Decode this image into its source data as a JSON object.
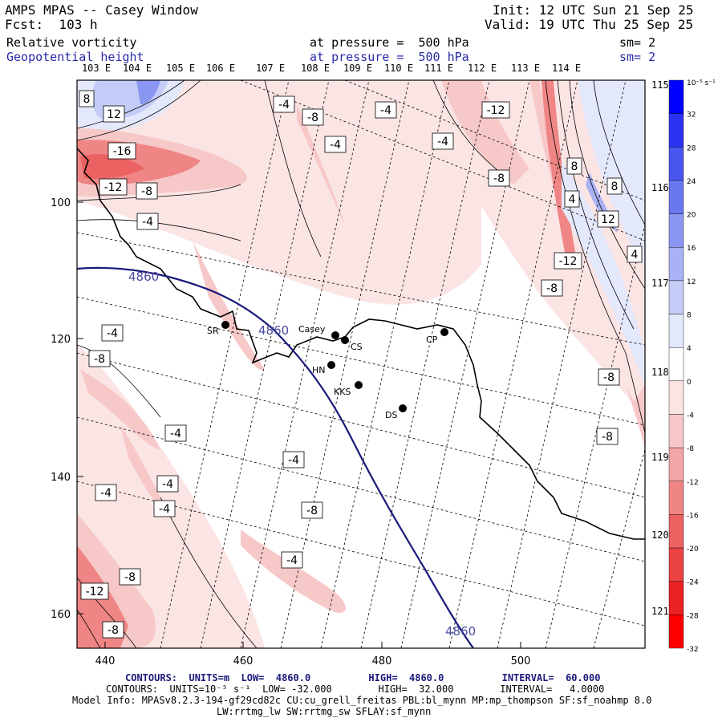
{
  "header": {
    "title": "AMPS MPAS -- Casey Window",
    "forecast": "Fcst:  103 h",
    "init": "Init: 12 UTC Sun 21 Sep 25",
    "valid": "Valid: 19 UTC Thu 25 Sep 25",
    "field1": {
      "name": "Relative vorticity",
      "level": "at pressure =  500 hPa",
      "sm": "sm= 2"
    },
    "field2": {
      "name": "Geopotential height",
      "level": "at pressure =  500 hPa",
      "sm": "sm= 2"
    }
  },
  "map": {
    "top_lon_labels": [
      "103 E",
      "104 E",
      "105 E",
      "106 E",
      "107 E",
      "108 E",
      "109 E",
      "110 E",
      "111 E",
      "112 E",
      "113 E",
      "114 E"
    ],
    "right_lon_labels": [
      "115 E",
      "116 E",
      "117 E",
      "118 E",
      "119 E",
      "120 E",
      "121 E"
    ],
    "x_ticks": [
      "440",
      "460",
      "480",
      "500"
    ],
    "y_ticks": [
      "100",
      "120",
      "140",
      "160"
    ],
    "stations": [
      {
        "label": "SR"
      },
      {
        "label": "Casey"
      },
      {
        "label": "CS"
      },
      {
        "label": "HN"
      },
      {
        "label": "KKS"
      },
      {
        "label": "DS"
      },
      {
        "label": "CP"
      }
    ],
    "vort_labels": [
      "8",
      "12",
      "-16",
      "-12",
      "-8",
      "-4",
      "-4",
      "-8",
      "-4",
      "-4",
      "-4",
      "-12",
      "-8",
      "8",
      "4",
      "8",
      "12",
      "4",
      "-12",
      "-8",
      "-4",
      "-8",
      "-4",
      "-8",
      "-4",
      "-4",
      "-8",
      "-4",
      "-4",
      "-8",
      "-4",
      "-8",
      "-12",
      "-8",
      "-8",
      "-4"
    ],
    "height_labels": [
      "4860",
      "4860",
      "4860"
    ]
  },
  "colorbar": {
    "unit": "10⁻⁵ s⁻¹",
    "labels": [
      "32",
      "28",
      "24",
      "20",
      "16",
      "12",
      "8",
      "4",
      "0",
      "-4",
      "-8",
      "-12",
      "-16",
      "-20",
      "-24",
      "-28",
      "-32"
    ],
    "colors": [
      "#0000ff",
      "#2b33f2",
      "#4a55f0",
      "#6a78f0",
      "#8a97f2",
      "#a8b2f4",
      "#c4ccf7",
      "#e4e8fb",
      "#ffffff",
      "#fbe4e4",
      "#f7c8c8",
      "#f3a6a6",
      "#ef8585",
      "#ec6262",
      "#eb4242",
      "#ea2222",
      "#ff0000"
    ]
  },
  "footer": {
    "contours1": "CONTOURS:  UNITS=m  LOW=  4860.0          HIGH=  4860.0          INTERVAL=  60.000",
    "contours2": "CONTOURS:  UNITS=10⁻⁵ s⁻¹  LOW= -32.000        HIGH=  32.000        INTERVAL=   4.0000",
    "model_info": "Model Info: MPASv8.2.3-194-gf29cd82c CU:cu_grell_freitas PBL:bl_mynn MP:mp_thompson SF:sf_noahmp 8.0",
    "model_info2": "LW:rrtmg_lw SW:rrtmg_sw SFLAY:sf_mynn"
  }
}
